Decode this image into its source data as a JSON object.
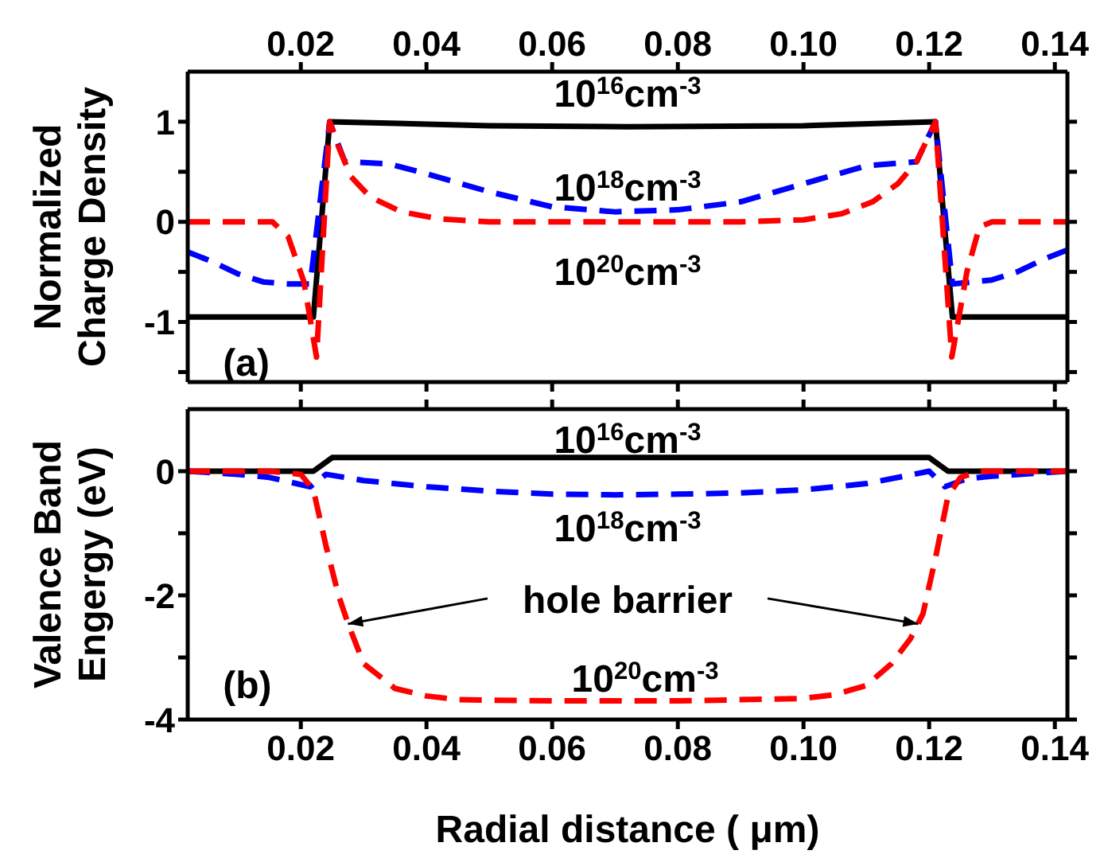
{
  "chart_data": [
    {
      "type": "line",
      "ylabel": "Normalized Charge Density",
      "xlim": [
        0.002,
        0.142
      ],
      "xticks": [
        0.02,
        0.04,
        0.06,
        0.08,
        {
          "value": 0.1,
          "label": "0.10"
        },
        0.12,
        0.14
      ],
      "ylim": [
        -1.6,
        1.5
      ],
      "yticks": [
        {
          "value": -1.5,
          "label": null
        },
        -1,
        {
          "value": -0.5,
          "label": null
        },
        0,
        {
          "value": 0.5,
          "label": null
        },
        1
      ],
      "grid": false,
      "legend": false,
      "series": [
        {
          "color": "#000000",
          "line_style": "solid",
          "x": [
            0.002,
            0.022,
            0.0246,
            0.05,
            0.072,
            0.1,
            0.121,
            0.1237,
            0.142
          ],
          "values": [
            -0.95,
            -0.95,
            1,
            0.96,
            0.95,
            0.96,
            1,
            -0.95,
            -0.95
          ]
        },
        {
          "color": "#0000ff",
          "line_style": "dashed",
          "x": [
            0.002,
            0.006,
            0.01,
            0.014,
            0.018,
            0.0215,
            0.0246,
            0.027,
            0.034,
            0.04,
            0.05,
            0.06,
            0.07,
            0.08,
            0.09,
            0.1,
            0.11,
            0.118,
            0.121,
            0.1237,
            0.127,
            0.13,
            0.134,
            0.138,
            0.142
          ],
          "values": [
            -0.3,
            -0.4,
            -0.52,
            -0.6,
            -0.62,
            -0.62,
            1,
            0.6,
            0.58,
            0.48,
            0.3,
            0.15,
            0.1,
            0.12,
            0.2,
            0.38,
            0.56,
            0.6,
            1,
            -0.62,
            -0.6,
            -0.58,
            -0.5,
            -0.38,
            -0.28
          ]
        },
        {
          "color": "#ff0000",
          "line_style": "dashed",
          "x": [
            0.002,
            0.01,
            0.0155,
            0.018,
            0.0205,
            0.0225,
            0.0246,
            0.026,
            0.028,
            0.031,
            0.036,
            0.042,
            0.05,
            0.07,
            0.09,
            0.1,
            0.106,
            0.111,
            0.115,
            0.118,
            0.121,
            0.1236,
            0.126,
            0.128,
            0.13,
            0.142
          ],
          "values": [
            0,
            0,
            0,
            -0.15,
            -0.6,
            -1.35,
            1,
            0.75,
            0.45,
            0.25,
            0.1,
            0.03,
            0,
            0,
            0,
            0.02,
            0.08,
            0.2,
            0.38,
            0.6,
            1,
            -1.35,
            -0.5,
            -0.05,
            0,
            0
          ]
        }
      ],
      "annotations": [
        "10$^{16}$cm$^{-3}$",
        "10$^{18}$cm$^{-3}$",
        "10$^{20}$cm$^{-3}$",
        "(a)"
      ]
    },
    {
      "type": "line",
      "ylabel": "Valence Band Engergy (eV)",
      "xlabel": "Radial distance ( μm)",
      "xlim": [
        0.002,
        0.142
      ],
      "xticks": [
        0.02,
        0.04,
        0.06,
        0.08,
        {
          "value": 0.1,
          "label": "0.10"
        },
        0.12,
        0.14
      ],
      "ylim": [
        -4,
        1
      ],
      "yticks": [
        -4,
        {
          "value": -3,
          "label": null
        },
        -2,
        {
          "value": -1,
          "label": null
        },
        0
      ],
      "grid": false,
      "legend": false,
      "series": [
        {
          "color": "#000000",
          "line_style": "solid",
          "x": [
            0.002,
            0.022,
            0.025,
            0.12,
            0.123,
            0.142
          ],
          "values": [
            0,
            0,
            0.22,
            0.22,
            0,
            0
          ]
        },
        {
          "color": "#0000ff",
          "line_style": "dashed",
          "x": [
            0.002,
            0.01,
            0.015,
            0.0215,
            0.024,
            0.03,
            0.04,
            0.05,
            0.06,
            0.07,
            0.08,
            0.09,
            0.1,
            0.11,
            0.12,
            0.1225,
            0.126,
            0.13,
            0.142
          ],
          "values": [
            0,
            -0.05,
            -0.1,
            -0.25,
            -0.05,
            -0.15,
            -0.25,
            -0.32,
            -0.37,
            -0.38,
            -0.37,
            -0.35,
            -0.3,
            -0.2,
            0,
            -0.25,
            -0.12,
            -0.08,
            0
          ]
        },
        {
          "color": "#ff0000",
          "line_style": "dashed",
          "x": [
            0.002,
            0.015,
            0.02,
            0.022,
            0.024,
            0.026,
            0.0275,
            0.03,
            0.035,
            0.04,
            0.045,
            0.06,
            0.08,
            0.1,
            0.105,
            0.11,
            0.114,
            0.117,
            0.119,
            0.121,
            0.123,
            0.125,
            0.128,
            0.142
          ],
          "values": [
            0,
            0,
            -0.05,
            -0.3,
            -1.2,
            -2.0,
            -2.45,
            -3.1,
            -3.5,
            -3.62,
            -3.68,
            -3.7,
            -3.7,
            -3.66,
            -3.6,
            -3.45,
            -3.1,
            -2.7,
            -2.3,
            -1.4,
            -0.4,
            -0.1,
            0,
            0
          ]
        }
      ],
      "annotations": [
        "10$^{16}$cm$^{-3}$",
        "10$^{18}$cm$^{-3}$",
        {
          "text": "hole barrier",
          "x": 0.0275,
          "y": -2.45
        },
        "10$^{20}$cm$^{-3}$",
        "(b)"
      ]
    }
  ]
}
